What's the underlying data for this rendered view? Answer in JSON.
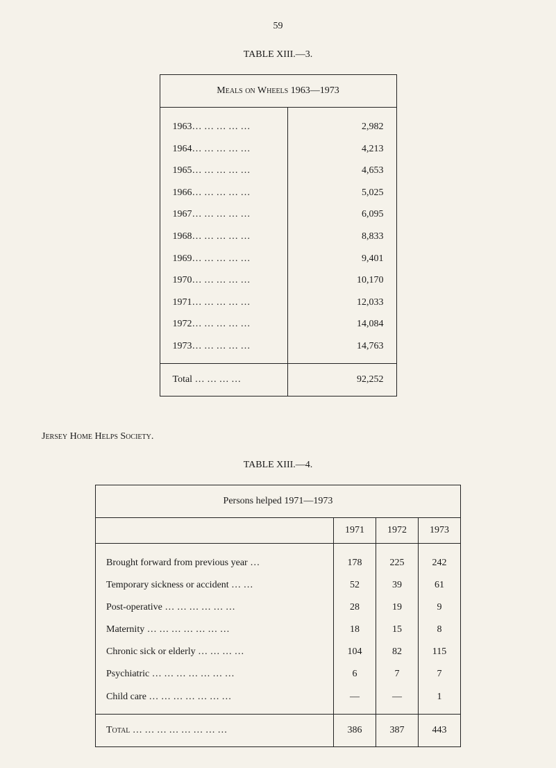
{
  "page_number": "59",
  "table1": {
    "title": "TABLE XIII.—3.",
    "header": "Meals on Wheels 1963—1973",
    "rows": [
      {
        "year": "1963…  …  …  …  …",
        "value": "2,982"
      },
      {
        "year": "1964…  …  …  …  …",
        "value": "4,213"
      },
      {
        "year": "1965…  …  …  …  …",
        "value": "4,653"
      },
      {
        "year": "1966…  …  …  …  …",
        "value": "5,025"
      },
      {
        "year": "1967…  …  …  …  …",
        "value": "6,095"
      },
      {
        "year": "1968…  …  …  …  …",
        "value": "8,833"
      },
      {
        "year": "1969…  …  …  …  …",
        "value": "9,401"
      },
      {
        "year": "1970…  …  …  …  …",
        "value": "10,170"
      },
      {
        "year": "1971…  …  …  …  …",
        "value": "12,033"
      },
      {
        "year": "1972…  …  …  …  …",
        "value": "14,084"
      },
      {
        "year": "1973…  …  …  …  …",
        "value": "14,763"
      }
    ],
    "total_label": "Total    …  …  …  …",
    "total_value": "92,252"
  },
  "section_label": "Jersey Home Helps Society.",
  "table2": {
    "title": "TABLE XIII.—4.",
    "header": "Persons helped 1971—1973",
    "years": [
      "1971",
      "1972",
      "1973"
    ],
    "rows": [
      {
        "label": "Brought forward from previous year   …",
        "values": [
          "178",
          "225",
          "242"
        ]
      },
      {
        "label": "Temporary sickness or accident    …  …",
        "values": [
          "52",
          "39",
          "61"
        ]
      },
      {
        "label": "Post-operative    …  …  …  …  …  …",
        "values": [
          "28",
          "19",
          "9"
        ]
      },
      {
        "label": "Maternity   …  …  …  …  …  …  …",
        "values": [
          "18",
          "15",
          "8"
        ]
      },
      {
        "label": "Chronic sick or elderly    …  …  …  …",
        "values": [
          "104",
          "82",
          "115"
        ]
      },
      {
        "label": "Psychiatric  …  …  …  …  …  …  …",
        "values": [
          "6",
          "7",
          "7"
        ]
      },
      {
        "label": "Child care   …  …  …  …  …  …  …",
        "values": [
          "—",
          "—",
          "1"
        ]
      }
    ],
    "total_label": "Total  …  …  …  …  …  …  …  …",
    "total_values": [
      "386",
      "387",
      "443"
    ]
  }
}
